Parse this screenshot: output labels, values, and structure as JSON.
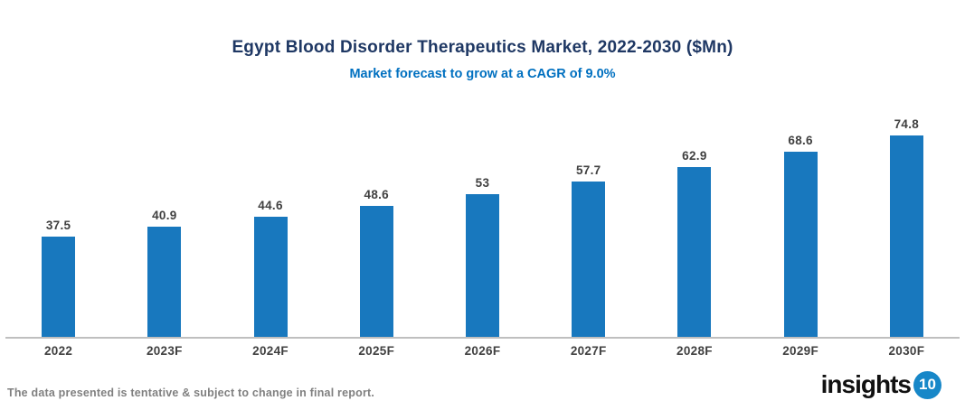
{
  "colors": {
    "bar": "#1878BE",
    "title": "#1F3864",
    "subtitle": "#0070C0",
    "axis_line": "#BFBFBF",
    "label_text": "#404040",
    "footer_text": "#808080",
    "logo_badge_bg": "#1787C8"
  },
  "header": {
    "title": "Egypt Blood Disorder Therapeutics Market, 2022-2030 ($Mn)",
    "subtitle": "Market forecast to grow at a CAGR of 9.0%"
  },
  "chart_data": {
    "type": "bar",
    "title": "Egypt Blood Disorder Therapeutics Market, 2022-2030 ($Mn)",
    "subtitle": "Market forecast to grow at a CAGR of 9.0%",
    "categories": [
      "2022",
      "2023F",
      "2024F",
      "2025F",
      "2026F",
      "2027F",
      "2028F",
      "2029F",
      "2030F"
    ],
    "values": [
      37.5,
      40.9,
      44.6,
      48.6,
      53,
      57.7,
      62.9,
      68.6,
      74.8
    ],
    "value_labels": [
      "37.5",
      "40.9",
      "44.6",
      "48.6",
      "53",
      "57.7",
      "62.9",
      "68.6",
      "74.8"
    ],
    "xlabel": "",
    "ylabel": "",
    "ylim": [
      0,
      80
    ],
    "grid": false,
    "legend": "none",
    "data_labels": true
  },
  "footer": {
    "disclaimer": "The data presented is tentative & subject to change in final report.",
    "logo_text": "insights",
    "logo_badge": "10"
  }
}
